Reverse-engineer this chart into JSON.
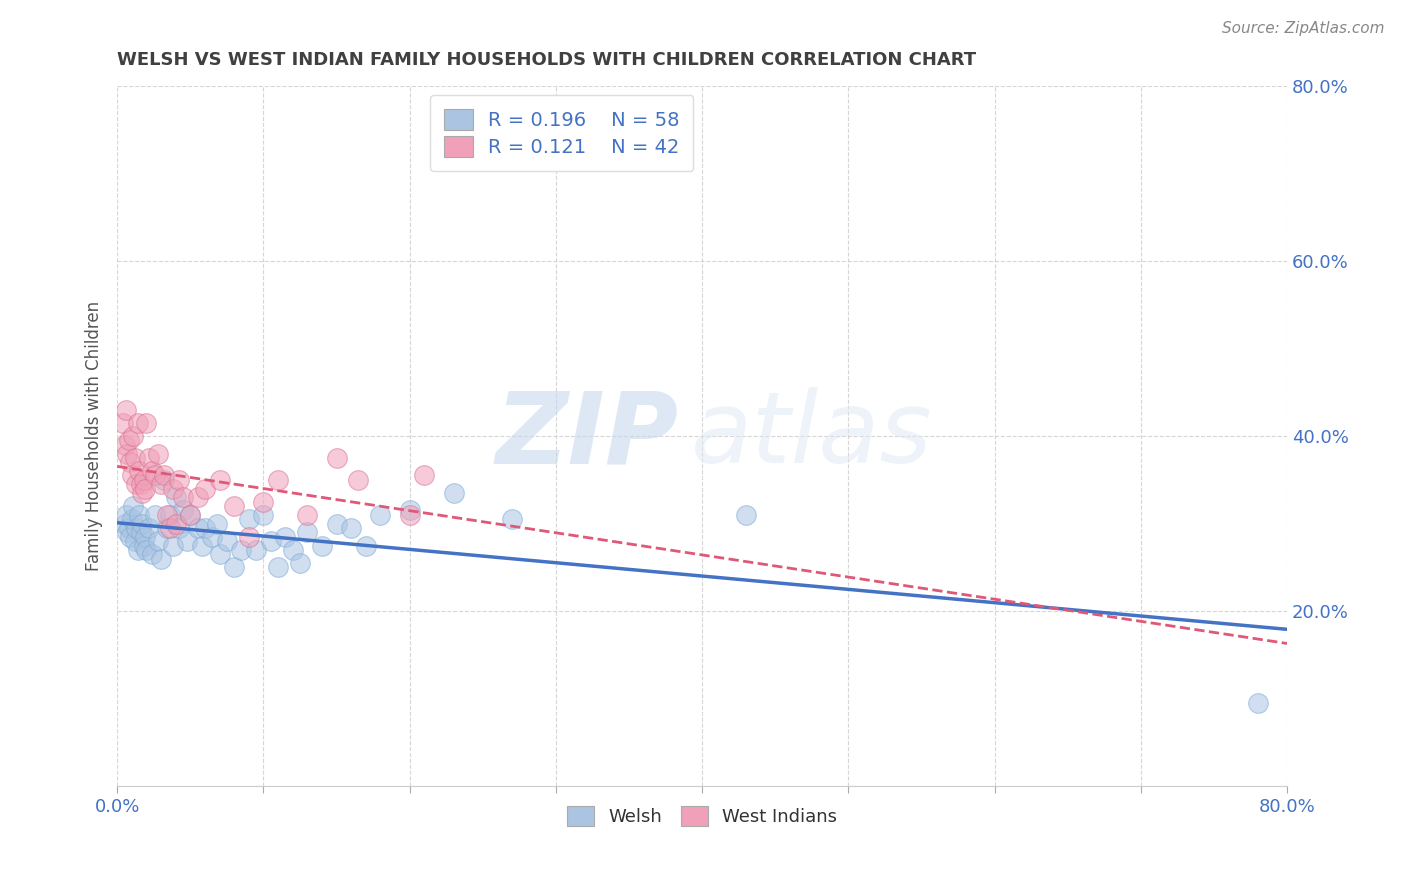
{
  "title": "WELSH VS WEST INDIAN FAMILY HOUSEHOLDS WITH CHILDREN CORRELATION CHART",
  "source": "Source: ZipAtlas.com",
  "xlabel": "",
  "ylabel": "Family Households with Children",
  "xlim": [
    0.0,
    0.8
  ],
  "ylim": [
    0.0,
    0.8
  ],
  "xticks": [
    0.0,
    0.1,
    0.2,
    0.3,
    0.4,
    0.5,
    0.6,
    0.7,
    0.8
  ],
  "yticks": [
    0.0,
    0.2,
    0.4,
    0.6,
    0.8
  ],
  "legend_welsh_R": "0.196",
  "legend_welsh_N": "58",
  "legend_wi_R": "0.121",
  "legend_wi_N": "42",
  "welsh_color": "#aac4e2",
  "wi_color": "#f0a0b8",
  "welsh_line_color": "#4472c4",
  "wi_line_color": "#e05878",
  "background_color": "#ffffff",
  "grid_color": "#cccccc",
  "watermark_zip": "ZIP",
  "watermark_atlas": "atlas",
  "title_color": "#404040",
  "axis_label_color": "#4472c4",
  "legend_R_color": "#4472c4",
  "welsh_scatter": [
    [
      0.005,
      0.3
    ],
    [
      0.006,
      0.31
    ],
    [
      0.007,
      0.29
    ],
    [
      0.008,
      0.295
    ],
    [
      0.009,
      0.285
    ],
    [
      0.01,
      0.305
    ],
    [
      0.011,
      0.32
    ],
    [
      0.012,
      0.28
    ],
    [
      0.013,
      0.295
    ],
    [
      0.014,
      0.27
    ],
    [
      0.015,
      0.31
    ],
    [
      0.016,
      0.29
    ],
    [
      0.017,
      0.3
    ],
    [
      0.018,
      0.275
    ],
    [
      0.019,
      0.285
    ],
    [
      0.02,
      0.27
    ],
    [
      0.022,
      0.295
    ],
    [
      0.024,
      0.265
    ],
    [
      0.026,
      0.31
    ],
    [
      0.028,
      0.28
    ],
    [
      0.03,
      0.26
    ],
    [
      0.032,
      0.35
    ],
    [
      0.034,
      0.295
    ],
    [
      0.036,
      0.31
    ],
    [
      0.038,
      0.275
    ],
    [
      0.04,
      0.33
    ],
    [
      0.042,
      0.295
    ],
    [
      0.045,
      0.315
    ],
    [
      0.048,
      0.28
    ],
    [
      0.05,
      0.31
    ],
    [
      0.055,
      0.295
    ],
    [
      0.058,
      0.275
    ],
    [
      0.06,
      0.295
    ],
    [
      0.065,
      0.285
    ],
    [
      0.068,
      0.3
    ],
    [
      0.07,
      0.265
    ],
    [
      0.075,
      0.28
    ],
    [
      0.08,
      0.25
    ],
    [
      0.085,
      0.27
    ],
    [
      0.09,
      0.305
    ],
    [
      0.095,
      0.27
    ],
    [
      0.1,
      0.31
    ],
    [
      0.105,
      0.28
    ],
    [
      0.11,
      0.25
    ],
    [
      0.115,
      0.285
    ],
    [
      0.12,
      0.27
    ],
    [
      0.125,
      0.255
    ],
    [
      0.13,
      0.29
    ],
    [
      0.14,
      0.275
    ],
    [
      0.15,
      0.3
    ],
    [
      0.16,
      0.295
    ],
    [
      0.17,
      0.275
    ],
    [
      0.18,
      0.31
    ],
    [
      0.2,
      0.315
    ],
    [
      0.23,
      0.335
    ],
    [
      0.27,
      0.305
    ],
    [
      0.43,
      0.31
    ],
    [
      0.78,
      0.095
    ]
  ],
  "wi_scatter": [
    [
      0.004,
      0.415
    ],
    [
      0.005,
      0.39
    ],
    [
      0.006,
      0.43
    ],
    [
      0.007,
      0.38
    ],
    [
      0.008,
      0.395
    ],
    [
      0.009,
      0.37
    ],
    [
      0.01,
      0.355
    ],
    [
      0.011,
      0.4
    ],
    [
      0.012,
      0.375
    ],
    [
      0.013,
      0.345
    ],
    [
      0.014,
      0.415
    ],
    [
      0.015,
      0.36
    ],
    [
      0.016,
      0.345
    ],
    [
      0.017,
      0.335
    ],
    [
      0.018,
      0.35
    ],
    [
      0.019,
      0.34
    ],
    [
      0.02,
      0.415
    ],
    [
      0.022,
      0.375
    ],
    [
      0.024,
      0.36
    ],
    [
      0.026,
      0.355
    ],
    [
      0.028,
      0.38
    ],
    [
      0.03,
      0.345
    ],
    [
      0.032,
      0.355
    ],
    [
      0.034,
      0.31
    ],
    [
      0.036,
      0.295
    ],
    [
      0.038,
      0.34
    ],
    [
      0.04,
      0.3
    ],
    [
      0.042,
      0.35
    ],
    [
      0.045,
      0.33
    ],
    [
      0.05,
      0.31
    ],
    [
      0.055,
      0.33
    ],
    [
      0.06,
      0.34
    ],
    [
      0.07,
      0.35
    ],
    [
      0.08,
      0.32
    ],
    [
      0.09,
      0.285
    ],
    [
      0.1,
      0.325
    ],
    [
      0.11,
      0.35
    ],
    [
      0.13,
      0.31
    ],
    [
      0.15,
      0.375
    ],
    [
      0.165,
      0.35
    ],
    [
      0.2,
      0.31
    ],
    [
      0.21,
      0.355
    ]
  ]
}
